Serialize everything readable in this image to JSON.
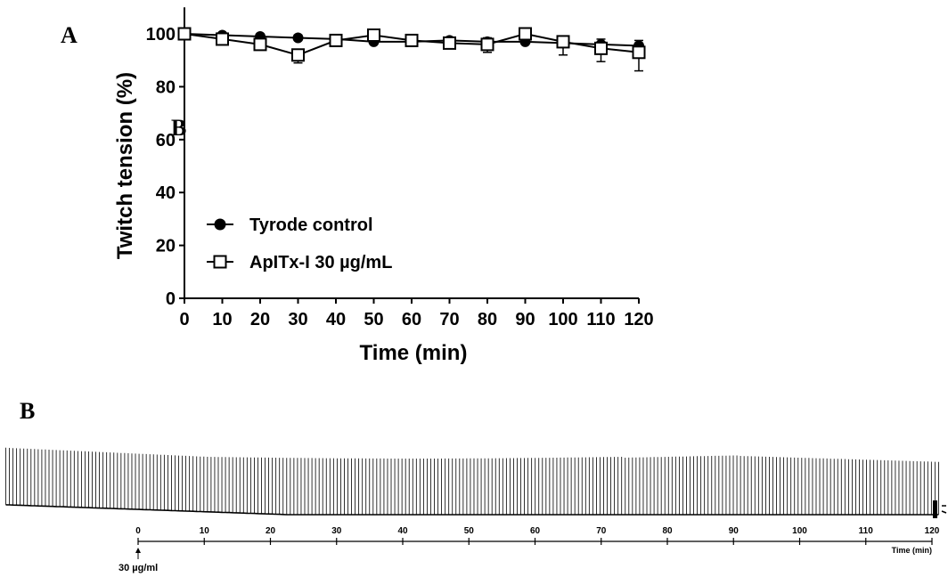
{
  "panel_letters": {
    "a": "A",
    "b_overlay": "B",
    "b": "B"
  },
  "chart_data": [
    {
      "type": "line",
      "panel": "A",
      "xlabel": "Time (min)",
      "ylabel": "Twitch tension (%)",
      "xlim": [
        0,
        120
      ],
      "ylim": [
        0,
        110
      ],
      "x_ticks": [
        0,
        10,
        20,
        30,
        40,
        50,
        60,
        70,
        80,
        90,
        100,
        110,
        120
      ],
      "y_ticks": [
        0,
        20,
        40,
        60,
        80,
        100
      ],
      "legend_position": "bottom-left",
      "grid": false,
      "series": [
        {
          "name": "Tyrode control",
          "marker": "filled-circle",
          "x": [
            0,
            10,
            20,
            30,
            40,
            50,
            60,
            70,
            80,
            90,
            100,
            110,
            120
          ],
          "y": [
            100,
            99.5,
            99,
            98.5,
            98,
            97,
            97,
            97.5,
            97,
            97,
            96.5,
            96,
            95.5
          ],
          "error": [
            0.5,
            0.8,
            0.8,
            1,
            1.5,
            1.2,
            1,
            1,
            1.5,
            2.5,
            2.5,
            2,
            2
          ]
        },
        {
          "name": "ApITx-I 30 µg/mL",
          "marker": "open-square",
          "x": [
            0,
            10,
            20,
            30,
            40,
            50,
            60,
            70,
            80,
            90,
            100,
            110,
            120
          ],
          "y": [
            100,
            98,
            96,
            92,
            97.5,
            99.5,
            97.5,
            96.5,
            96,
            100,
            97,
            94.5,
            93
          ],
          "error": [
            0.5,
            1.5,
            1.5,
            3,
            2,
            1,
            1.5,
            1.5,
            3,
            1.5,
            5,
            5,
            7
          ]
        }
      ],
      "colors": {
        "lines": "#000000"
      }
    },
    {
      "type": "line",
      "panel": "B",
      "subtype": "myograph-trace",
      "xlabel": "Time (min)",
      "xlim": [
        0,
        120
      ],
      "x_ticks": [
        0,
        10,
        20,
        30,
        40,
        50,
        60,
        70,
        80,
        90,
        100,
        110,
        120
      ],
      "annotations": [
        {
          "text": "30 µg/ml",
          "at_time": 0,
          "type": "arrow"
        }
      ],
      "trace": {
        "twitch_count": 260,
        "time_start": -20,
        "time_end": 121
      },
      "colors": {
        "trace": "#000000"
      }
    }
  ]
}
